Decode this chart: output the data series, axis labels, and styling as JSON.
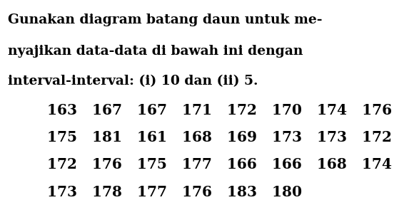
{
  "line1": "Gunakan diagram batang daun untuk me-",
  "line2": "nyajikan data-data di bawah ini dengan",
  "line3": "interval-interval: (i) 10 dan (ii) 5.",
  "data_rows": [
    "163   167   167   171   172   170   174   176",
    "175   181   161   168   169   173   173   172",
    "172   176   175   177   166   166   168   174",
    "173   178   177   176   183   180"
  ],
  "background_color": "#ffffff",
  "text_color": "#000000",
  "font_size_body": 13.5,
  "font_size_data": 14.5,
  "font_family": "serif"
}
